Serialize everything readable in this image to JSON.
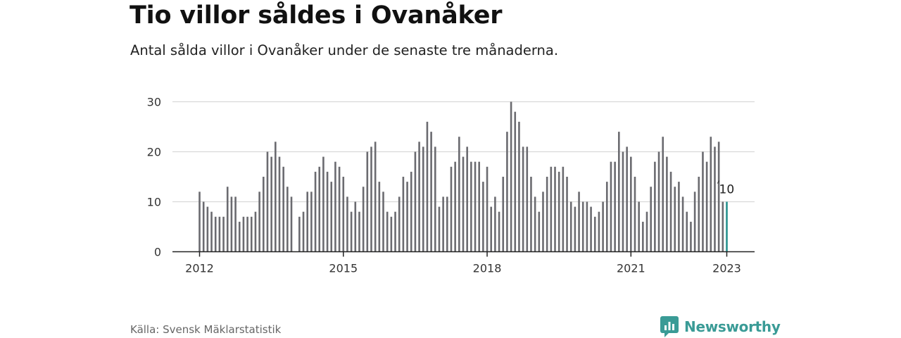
{
  "title": "Tio villor såldes i Ovanåker",
  "subtitle": "Antal sålda villor i Ovanåker under de senaste tre månaderna.",
  "source": "Källa: Svensk Mäklarstatistik",
  "brand": {
    "name": "Newsworthy",
    "icon": "newsworthy-logo-icon",
    "color": "#3a9b96"
  },
  "colors": {
    "bar": "#6b6b70",
    "highlight": "#27928f",
    "grid": "#d9d9d9",
    "axis": "#222222"
  },
  "chart_data": {
    "type": "bar",
    "title": "Tio villor såldes i Ovanåker",
    "subtitle": "Antal sålda villor i Ovanåker under de senaste tre månaderna.",
    "xlabel": "",
    "ylabel": "",
    "ylim": [
      0,
      30
    ],
    "yticks": [
      0,
      10,
      20,
      30
    ],
    "xtick_labels": [
      "2012",
      "2015",
      "2018",
      "2021",
      "2023"
    ],
    "x_start": "2012-01",
    "x_end": "2023-01",
    "gridlines": true,
    "categories": [
      "2012-01",
      "2012-02",
      "2012-03",
      "2012-04",
      "2012-05",
      "2012-06",
      "2012-07",
      "2012-08",
      "2012-09",
      "2012-10",
      "2012-11",
      "2012-12",
      "2013-01",
      "2013-02",
      "2013-03",
      "2013-04",
      "2013-05",
      "2013-06",
      "2013-07",
      "2013-08",
      "2013-09",
      "2013-10",
      "2013-11",
      "2013-12",
      "2014-01",
      "2014-02",
      "2014-03",
      "2014-04",
      "2014-05",
      "2014-06",
      "2014-07",
      "2014-08",
      "2014-09",
      "2014-10",
      "2014-11",
      "2014-12",
      "2015-01",
      "2015-02",
      "2015-03",
      "2015-04",
      "2015-05",
      "2015-06",
      "2015-07",
      "2015-08",
      "2015-09",
      "2015-10",
      "2015-11",
      "2015-12",
      "2016-01",
      "2016-02",
      "2016-03",
      "2016-04",
      "2016-05",
      "2016-06",
      "2016-07",
      "2016-08",
      "2016-09",
      "2016-10",
      "2016-11",
      "2016-12",
      "2017-01",
      "2017-02",
      "2017-03",
      "2017-04",
      "2017-05",
      "2017-06",
      "2017-07",
      "2017-08",
      "2017-09",
      "2017-10",
      "2017-11",
      "2017-12",
      "2018-01",
      "2018-02",
      "2018-03",
      "2018-04",
      "2018-05",
      "2018-06",
      "2018-07",
      "2018-08",
      "2018-09",
      "2018-10",
      "2018-11",
      "2018-12",
      "2019-01",
      "2019-02",
      "2019-03",
      "2019-04",
      "2019-05",
      "2019-06",
      "2019-07",
      "2019-08",
      "2019-09",
      "2019-10",
      "2019-11",
      "2019-12",
      "2020-01",
      "2020-02",
      "2020-03",
      "2020-04",
      "2020-05",
      "2020-06",
      "2020-07",
      "2020-08",
      "2020-09",
      "2020-10",
      "2020-11",
      "2020-12",
      "2021-01",
      "2021-02",
      "2021-03",
      "2021-04",
      "2021-05",
      "2021-06",
      "2021-07",
      "2021-08",
      "2021-09",
      "2021-10",
      "2021-11",
      "2021-12",
      "2022-01",
      "2022-02",
      "2022-03",
      "2022-04",
      "2022-05",
      "2022-06",
      "2022-07",
      "2022-08",
      "2022-09",
      "2022-10",
      "2022-11",
      "2022-12",
      "2023-01"
    ],
    "values": [
      12,
      10,
      9,
      8,
      7,
      7,
      7,
      13,
      11,
      11,
      6,
      7,
      7,
      7,
      8,
      12,
      15,
      20,
      19,
      22,
      19,
      17,
      13,
      11,
      null,
      7,
      8,
      12,
      12,
      16,
      17,
      19,
      16,
      14,
      18,
      17,
      15,
      11,
      8,
      10,
      8,
      13,
      20,
      21,
      22,
      14,
      12,
      8,
      7,
      8,
      11,
      15,
      14,
      16,
      20,
      22,
      21,
      26,
      24,
      21,
      9,
      11,
      11,
      17,
      18,
      23,
      19,
      21,
      18,
      18,
      18,
      14,
      17,
      9,
      11,
      8,
      15,
      24,
      30,
      28,
      26,
      21,
      21,
      15,
      11,
      8,
      12,
      15,
      17,
      17,
      16,
      17,
      15,
      10,
      9,
      12,
      10,
      10,
      9,
      7,
      8,
      10,
      14,
      18,
      18,
      24,
      20,
      21,
      19,
      15,
      10,
      6,
      8,
      13,
      18,
      20,
      23,
      19,
      16,
      13,
      14,
      11,
      8,
      6,
      12,
      15,
      20,
      18,
      23,
      21,
      22,
      10,
      10
    ],
    "highlight": {
      "category": "2023-01",
      "value": 10,
      "label": "10"
    }
  }
}
